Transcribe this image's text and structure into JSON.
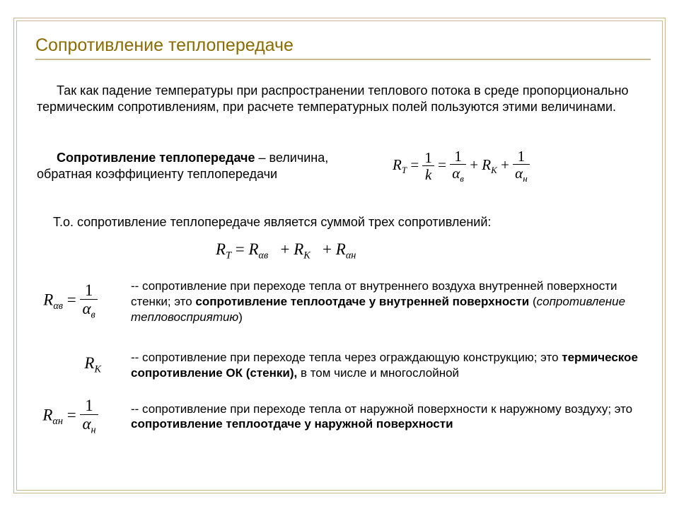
{
  "title": {
    "text": "Сопротивление теплопередаче",
    "color": "#8a6d00",
    "underline_color": "#c9b890",
    "fontsize": 25
  },
  "intro": "Так как падение температуры при распространении теплового потока в среде пропорционально термическим сопротивлениям, при расчете температурных полей пользуются этими величинами.",
  "definition": {
    "lead_bold": "Сопротивление теплопередаче",
    "lead_rest": " – величина, обратная коэффициенту теплопередачи",
    "eq": {
      "lhs_sym": "R",
      "lhs_sub": "T",
      "frac1_num": "1",
      "frac1_den": "k",
      "frac2_num": "1",
      "frac2_den_sym": "α",
      "frac2_den_sub": "в",
      "mid_sym": "R",
      "mid_sub": "K",
      "frac3_num": "1",
      "frac3_den_sym": "α",
      "frac3_den_sub": "н"
    }
  },
  "sum_line": "Т.о. сопротивление теплопередаче  является суммой трех сопротивлений:",
  "sum_eq": {
    "lhs": "R",
    "lhs_sub": "T",
    "t1": "R",
    "t1_sub": "αв",
    "t2": "R",
    "t2_sub": "K",
    "t3": "R",
    "t3_sub": "αн"
  },
  "terms": [
    {
      "sym_main": "R",
      "sym_sub": "αв",
      "has_frac": true,
      "frac_num": "1",
      "frac_den_sym": "α",
      "frac_den_sub": "в",
      "dash": "-- ",
      "plain1": "сопротивление при переходе тепла от внутреннего воздуха внутренней поверхности стенки; это ",
      "bold1": "сопротивление теплоотдаче у внутренней поверхности",
      "plain2": " (",
      "italic1": "сопротивление тепловосприятию",
      "plain3": ")"
    },
    {
      "sym_main": "R",
      "sym_sub": "K",
      "has_frac": false,
      "dash": "-- ",
      "plain1": "сопротивление при переходе тепла через ограждающую конструкцию; это ",
      "bold1": "термическое сопротивление ОК (стенки),",
      "plain2": " в том числе и многослойной",
      "italic1": "",
      "plain3": ""
    },
    {
      "sym_main": "R",
      "sym_sub": "αн",
      "has_frac": true,
      "frac_num": "1",
      "frac_den_sym": "α",
      "frac_den_sub": "н",
      "dash": "-- ",
      "plain1": "сопротивление при переходе тепла от наружной поверхности к наружному воздуху; это ",
      "bold1": "сопротивление теплоотдаче у наружной поверхности",
      "plain2": "",
      "italic1": "",
      "plain3": ""
    }
  ],
  "colors": {
    "frame": "#c9b890",
    "text": "#000000",
    "background": "#ffffff"
  }
}
